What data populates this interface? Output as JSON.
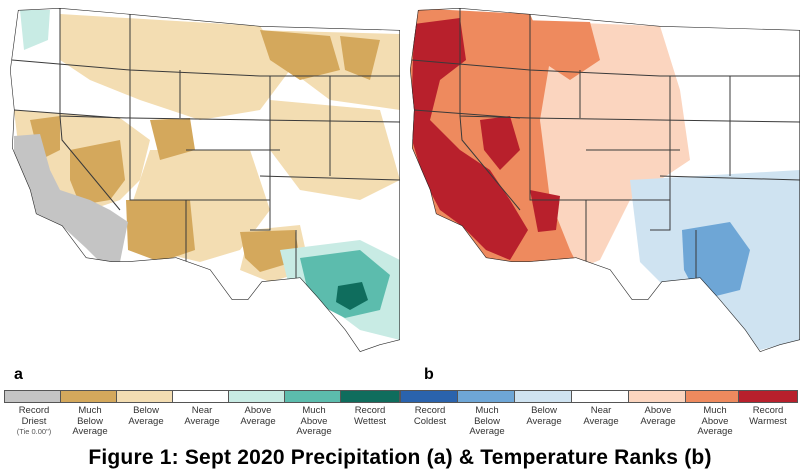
{
  "panels": [
    {
      "id": "a",
      "label": "a",
      "variable": "precipitation"
    },
    {
      "id": "b",
      "label": "b",
      "variable": "temperature"
    }
  ],
  "legend": [
    {
      "label": "Record\nDriest",
      "note": "(Tie 0.00\")",
      "color": "#c4c4c4"
    },
    {
      "label": "Much\nBelow\nAverage",
      "color": "#d4a85c"
    },
    {
      "label": "Below\nAverage",
      "color": "#f3ddb2"
    },
    {
      "label": "Near\nAverage",
      "color": "#ffffff"
    },
    {
      "label": "Above\nAverage",
      "color": "#c8ebe4"
    },
    {
      "label": "Much\nAbove\nAverage",
      "color": "#5cbcad"
    },
    {
      "label": "Record\nWettest",
      "color": "#0f6d5d"
    },
    {
      "label": "Record\nColdest",
      "color": "#2a63ad"
    },
    {
      "label": "Much\nBelow\nAverage",
      "color": "#6ea6d6"
    },
    {
      "label": "Below\nAverage",
      "color": "#cfe3f1"
    },
    {
      "label": "Near\nAverage",
      "color": "#ffffff"
    },
    {
      "label": "Above\nAverage",
      "color": "#fbd5bf"
    },
    {
      "label": "Much\nAbove\nAverage",
      "color": "#ee8a5e"
    },
    {
      "label": "Record\nWarmest",
      "color": "#b8202c"
    }
  ],
  "caption": "Figure 1: Sept 2020 Precipitation (a) & Temperature Ranks (b)"
}
